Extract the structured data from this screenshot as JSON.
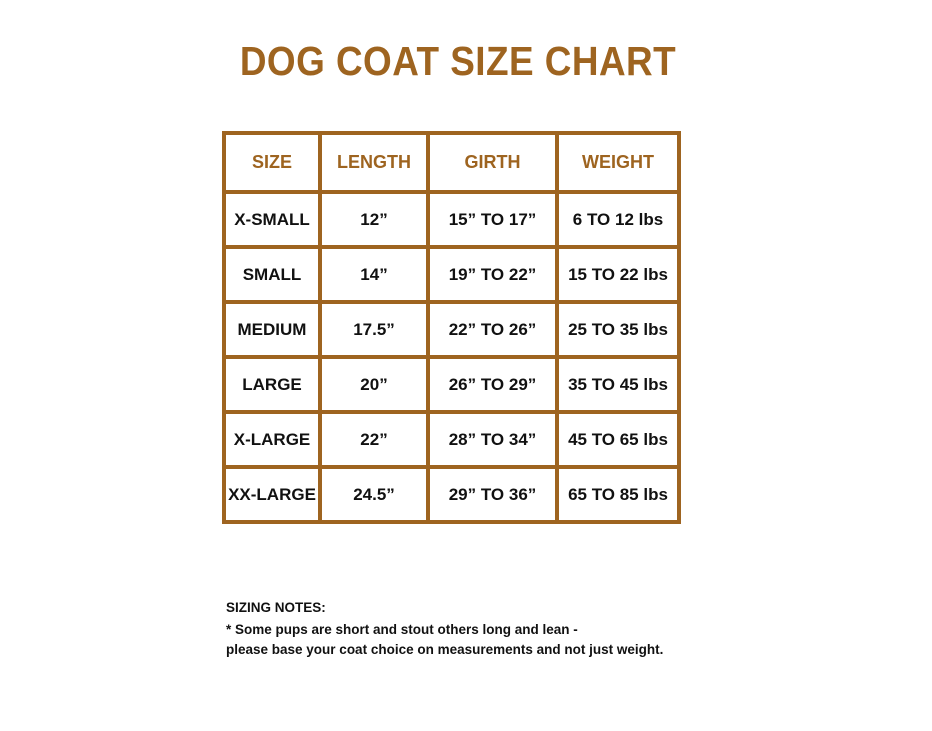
{
  "title": "DOG COAT SIZE CHART",
  "table": {
    "headers": [
      "SIZE",
      "LENGTH",
      "GIRTH",
      "WEIGHT"
    ],
    "rows": [
      [
        "X-SMALL",
        "12”",
        "15” TO 17”",
        "6 TO 12 lbs"
      ],
      [
        "SMALL",
        "14”",
        "19” TO 22”",
        "15 TO 22 lbs"
      ],
      [
        "MEDIUM",
        "17.5”",
        "22” TO 26”",
        "25 TO 35 lbs"
      ],
      [
        "LARGE",
        "20”",
        "26” TO 29”",
        "35 TO 45 lbs"
      ],
      [
        "X-LARGE",
        "22”",
        "28” TO 34”",
        "45 TO 65 lbs"
      ],
      [
        "XX-LARGE",
        "24.5”",
        "29” TO 36”",
        "65 TO 85 lbs"
      ]
    ]
  },
  "notes": {
    "heading": "SIZING NOTES:",
    "line1": "* Some pups are short and stout others long and lean -",
    "line2": "please base your coat choice on measurements and not just weight."
  },
  "colors": {
    "accent": "#9e6420",
    "text": "#111111"
  }
}
